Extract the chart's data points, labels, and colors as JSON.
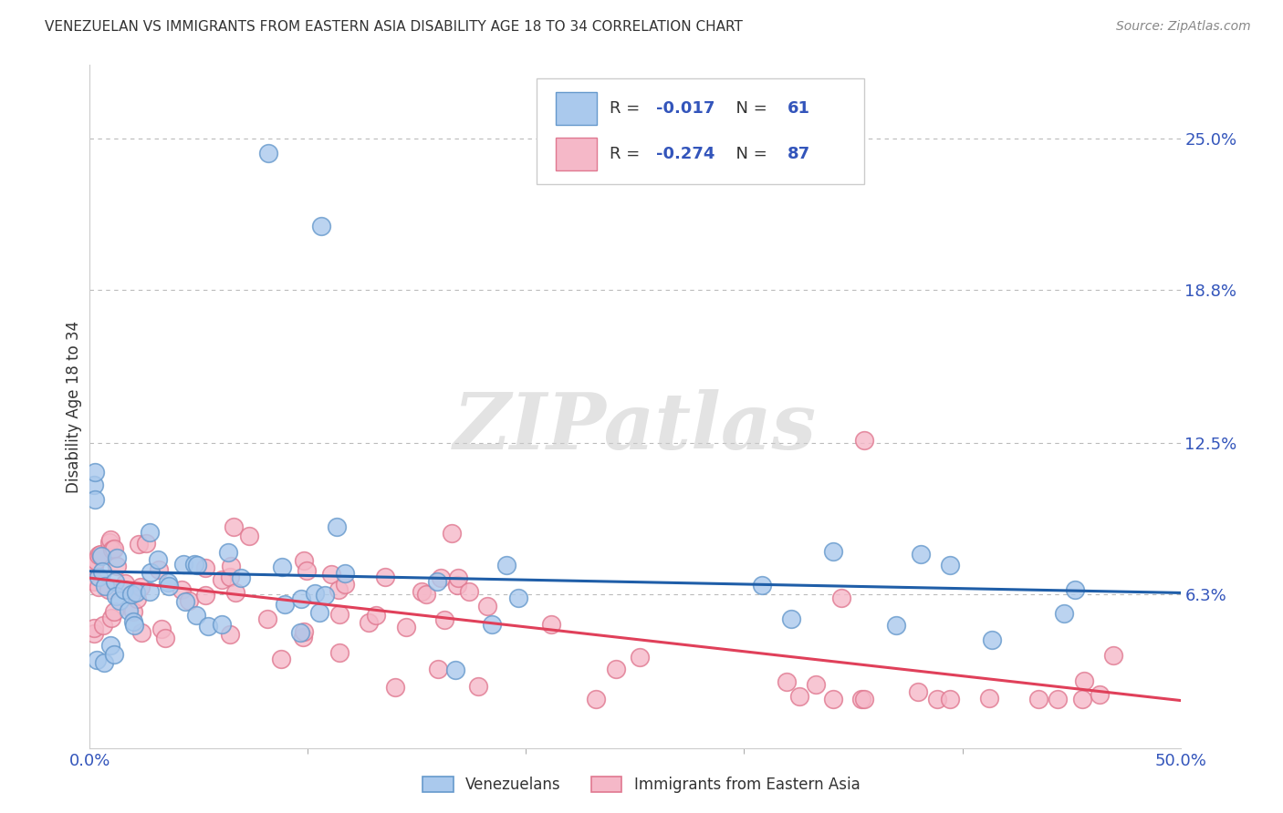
{
  "title": "VENEZUELAN VS IMMIGRANTS FROM EASTERN ASIA DISABILITY AGE 18 TO 34 CORRELATION CHART",
  "source": "Source: ZipAtlas.com",
  "ylabel": "Disability Age 18 to 34",
  "xlim": [
    0.0,
    0.5
  ],
  "ylim": [
    0.0,
    0.28
  ],
  "xticklabels": [
    "0.0%",
    "50.0%"
  ],
  "xtick_vals": [
    0.0,
    0.5
  ],
  "ytick_right_labels": [
    "25.0%",
    "18.8%",
    "12.5%",
    "6.3%"
  ],
  "ytick_right_vals": [
    0.25,
    0.188,
    0.125,
    0.063
  ],
  "venezuelan_R": "-0.017",
  "venezuelan_N": "61",
  "eastern_asia_R": "-0.274",
  "eastern_asia_N": "87",
  "blue_face": "#aac9ed",
  "blue_edge": "#6699cc",
  "pink_face": "#f5b8c8",
  "pink_edge": "#e07890",
  "blue_line": "#1f5ea8",
  "pink_line": "#e0405a",
  "text_dark": "#333333",
  "text_blue": "#3355bb",
  "text_red": "#cc2222",
  "grid_color": "#bbbbbb",
  "watermark": "ZIPatlas",
  "background_color": "#ffffff",
  "legend_text_color": "#3355bb",
  "legend_label_color": "#333333",
  "source_color": "#888888"
}
